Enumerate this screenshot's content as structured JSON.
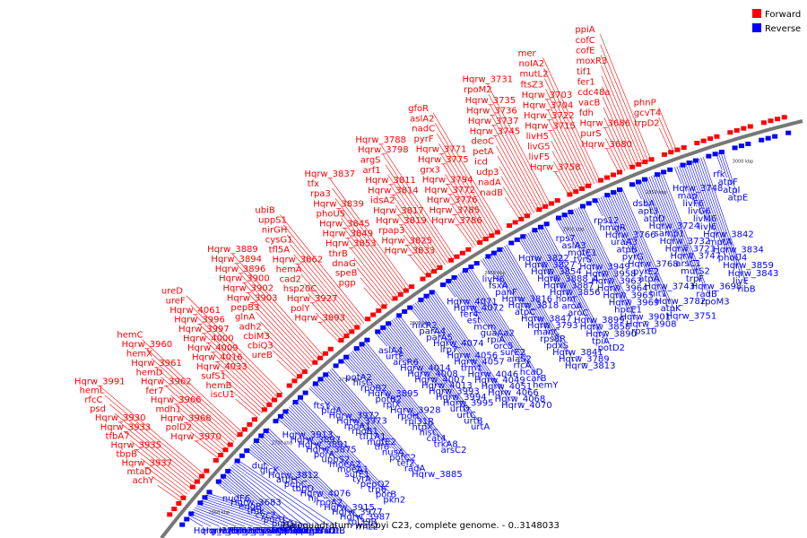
{
  "caption": "Haloquadratum walsbyi C23, complete genome. - 0..3148033",
  "legend": [
    {
      "label": "Forward",
      "color": "#ff0000"
    },
    {
      "label": "Reverse",
      "color": "#0000ff"
    }
  ],
  "ticks": [
    "2650 kbp",
    "2700 kbp",
    "2750 kbp",
    "2800 kbp",
    "2850 kbp",
    "2900 kbp",
    "2950 kbp",
    "3000 kbp"
  ],
  "colors": {
    "forward": "#ff0000",
    "reverse": "#0000ff",
    "backbone": "#777777"
  },
  "forward_labels": [
    "achY",
    "mtaD",
    "Hqrw_3937",
    "tbpB",
    "Hqrw_3935",
    "tfbA7",
    "Hqrw_3933",
    "Hqrw_3930",
    "psd",
    "rfcC",
    "hemL",
    "Hqrw_3991",
    "Hqrw_3970",
    "polD2",
    "Hqrw_3968",
    "mdh1",
    "Hqrw_3966",
    "fer7",
    "Hqrw_3962",
    "hemD",
    "Hqrw_3961",
    "hemX",
    "Hqrw_3960",
    "hemC",
    "iscU1",
    "hemB",
    "sufS1",
    "Hqrw_4033",
    "Hqrw_4016",
    "Hqrw_4009",
    "Hqrw_4000",
    "Hqrw_3997",
    "Hqrw_3996",
    "Hqrw_4061",
    "ureF",
    "ureD",
    "ureB",
    "cbiQ3",
    "cbiM3",
    "adh2",
    "glnA",
    "pepB3",
    "Hqrw_3903",
    "Hqrw_3902",
    "Hqrw_3900",
    "Hqrw_3896",
    "Hqrw_3894",
    "Hqrw_3889",
    "Hqrw_3893",
    "polY",
    "Hqrw_3927",
    "hsp20C",
    "cad2",
    "hemA",
    "Hqrw_3862",
    "tfl5A",
    "cysG1",
    "nirGH",
    "uppS1",
    "ubiB",
    "pgp",
    "speB",
    "dnaG",
    "thrB",
    "Hqrw_3853",
    "Hqrw_3849",
    "Hqrw_3845",
    "phoU5",
    "Hqrw_3839",
    "rpa3",
    "tfx",
    "Hqrw_3837",
    "Hqrw_3833",
    "Hqrw_3825",
    "rpap3",
    "Hqrw_3819",
    "Hqrw_3817",
    "idsA2",
    "Hqrw_3814",
    "Hqrw_3811",
    "arf1",
    "argS",
    "Hqrw_3798",
    "Hqrw_3788",
    "Hqrw_3786",
    "Hqrw_3785",
    "Hqrw_3776",
    "Hqrw_3772",
    "Hqrw_3794",
    "grx3",
    "Hqrw_3775",
    "Hqrw_3771",
    "pyrF",
    "nadC",
    "aslA2",
    "gfoR",
    "nadB",
    "nadA",
    "udp3",
    "icd",
    "petA",
    "deoC",
    "Hqrw_3745",
    "Hqrw_3737",
    "Hqrw_3736",
    "Hqrw_3735",
    "rpoM2",
    "Hqrw_3731",
    "Hqrw_3758",
    "livF5",
    "livG5",
    "livH5",
    "Hqrw_3715",
    "Hqrw_3722",
    "Hqrw_3704",
    "Hqrw_3703",
    "ftsZ3",
    "mutL2",
    "noIA2",
    "mer",
    "Hqrw_3680",
    "purS",
    "Hqrw_3686",
    "fdh",
    "vacB",
    "cdc48a",
    "fer1",
    "tif1",
    "moxR3",
    "cofE",
    "cofC",
    "ppiA",
    "trpD2",
    "gcvT4",
    "phnP"
  ],
  "reverse_labels": [
    "Hqrw_3752",
    "Hqrw_3762",
    "guaAb",
    "Hqrw_3753",
    "Hqrw_3750",
    "Hqrw_3749",
    "Hqrw_3741",
    "Hqrw_3719",
    "livM5",
    "livJ5",
    "trpD1",
    "Hqrw_3707",
    "trpE",
    "trpG",
    "nudF6",
    "Hqrw_3683",
    "engB",
    "tmk",
    "cyc2",
    "purU",
    "purC",
    "cofH",
    "cofG",
    "trkA7",
    "serS",
    "pdaD",
    "nirDL",
    "citB",
    "dut",
    "glcK",
    "Hqrw_3812",
    "atpH",
    "pepC",
    "tbpD",
    "Hqrw_4076",
    "hjc",
    "rpoA2",
    "Hqrw_3915",
    "Hqrw_3977",
    "Hqrw_3987",
    "rpl39R",
    "rrnz2",
    "Hqrw_3913",
    "Hqrw_3897",
    "Hqrw_3891",
    "Hqrw_3875",
    "porA",
    "uppS2",
    "moeA2",
    "moeA1",
    "sufE1",
    "tyrA",
    "pepQ2",
    "trp6",
    "porB",
    "pkn2",
    "ftsY",
    "pfdA",
    "Hqrw_3972",
    "Hqrw_3973",
    "rpoA1",
    "rpoB1",
    "tfl1A1",
    "mgtE2",
    "tif6",
    "nusA",
    "potC2",
    "tef2",
    "radA",
    "Hqrw_3885",
    "potA2",
    "hisG",
    "rpoB2",
    "Hqrw_3895",
    "potB2",
    "rplX",
    "Hqrw_3928",
    "rpoH",
    "rpl31R",
    "htpX",
    "hisC",
    "cat4",
    "trkA8",
    "arsC2",
    "aslA4",
    "urtE",
    "arsR6",
    "Hqrw_4014",
    "Hqrw_4008",
    "Hqrw_4007",
    "Hqrw_4013",
    "Hqrw_3993",
    "Hqrw_3994",
    "Hqrw_3995",
    "urtD",
    "urtC",
    "urtB",
    "urtA",
    "nikR2",
    "parA4",
    "parA5",
    "Hqrw_4074",
    "lrp7",
    "Hqrw_4056",
    "Hqrw_4057",
    "trm1",
    "Hqrw_4046",
    "Hqrw_4049",
    "Hqrw_4051",
    "Hqrw_4066",
    "Hqrw_4068",
    "Hqrw_4070",
    "Hqrw_4071",
    "Hqrw_4072",
    "fer4",
    "est",
    "mcm",
    "guaAa2",
    "rpiA",
    "orc5",
    "surE2",
    "alaS2",
    "rfcA",
    "hcaD",
    "carB",
    "hemY",
    "livH6",
    "fsxA",
    "panF",
    "Hqrw_3816",
    "Hqrw_3818",
    "atpC",
    "Hqrw_3847",
    "Hqrw_3793",
    "manC",
    "rps8R",
    "pdxS",
    "Hqrw_3841",
    "Hqrw_3789",
    "Hqrw_3813",
    "Hqrw_3822",
    "Hqrw_3827",
    "Hqrw_3854",
    "Hqrw_3888_A",
    "Hqrw_3887",
    "Hqrw_3856",
    "hom",
    "aroA",
    "aroC",
    "Hqrw_3899",
    "Hqrw_3858",
    "Hqrw_3890",
    "tpiA",
    "potD2",
    "rps7",
    "aslA3",
    "mgtE1",
    "tyrS",
    "Hqrw_3949",
    "Hqrw_3958",
    "Hqrw_3963",
    "Hqrw_3964",
    "Hqrw_3965",
    "Hqrw_3969",
    "hpcE1",
    "Hqrw_3901",
    "Hqrw_3908",
    "rps10",
    "rps12",
    "hmgR",
    "Hqrw_3766",
    "uraA3",
    "atpB",
    "pyrG",
    "Hqrw_3768",
    "pyrE2",
    "atpA",
    "Hqrw_3743",
    "hit1",
    "Hqrw_3782",
    "atpK",
    "Hqrw_3751",
    "dsbA",
    "apt3",
    "atpD",
    "Hqrw_3724",
    "samp1",
    "Hqrw_3732",
    "Hqrw_3721",
    "Hqrw_3747",
    "arsC1",
    "mutS2",
    "trpF",
    "Hqrw_3698",
    "radB",
    "rpoM3",
    "Hqrw_3748",
    "map",
    "livF6",
    "livG6",
    "livM6",
    "livJ6",
    "Hqrw_3842",
    "mptA",
    "Hqrw_3834",
    "phoU4",
    "Hqrw_3859",
    "Hqrw_3843",
    "livE",
    "ribB",
    "rfk",
    "atpF",
    "atpI",
    "atpE"
  ]
}
